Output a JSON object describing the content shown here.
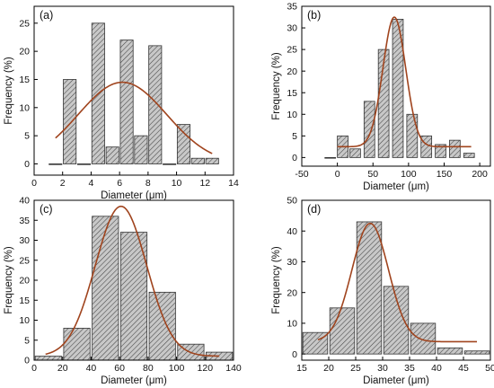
{
  "chart_data": [
    {
      "type": "bar",
      "panel_label": "(a)",
      "xlabel": "Diameter (μm)",
      "ylabel": "Frequency (%)",
      "xlim": [
        0,
        14
      ],
      "ylim": [
        -2,
        28
      ],
      "xticks": [
        "0",
        "2",
        "4",
        "6",
        "8",
        "10",
        "12",
        "14"
      ],
      "yticks": [
        "0",
        "5",
        "10",
        "15",
        "20",
        "25"
      ],
      "bar_width": 0.9,
      "bars": [
        {
          "x": 1.5,
          "y": 0
        },
        {
          "x": 2.5,
          "y": 15
        },
        {
          "x": 3.5,
          "y": 0
        },
        {
          "x": 4.5,
          "y": 25
        },
        {
          "x": 5.5,
          "y": 3
        },
        {
          "x": 6.5,
          "y": 22
        },
        {
          "x": 7.5,
          "y": 5
        },
        {
          "x": 8.5,
          "y": 21
        },
        {
          "x": 9.5,
          "y": 0
        },
        {
          "x": 10.5,
          "y": 7
        },
        {
          "x": 11.5,
          "y": 1
        },
        {
          "x": 12.5,
          "y": 1
        }
      ],
      "fit": {
        "type": "gaussian",
        "baseline": 0,
        "amplitude": 14.5,
        "center": 6.2,
        "sigma": 3.1,
        "x_range": [
          1.5,
          12.5
        ]
      }
    },
    {
      "type": "bar",
      "panel_label": "(b)",
      "xlabel": "Diameter (μm)",
      "ylabel": "Frequency (%)",
      "xlim": [
        -50,
        215
      ],
      "ylim": [
        -2,
        35
      ],
      "xticks": [
        "-50",
        "0",
        "50",
        "100",
        "150",
        "200"
      ],
      "yticks": [
        "0",
        "5",
        "10",
        "15",
        "20",
        "25",
        "30",
        "35"
      ],
      "bar_width": 15,
      "bars": [
        {
          "x": -10,
          "y": 0
        },
        {
          "x": 7.5,
          "y": 5
        },
        {
          "x": 25,
          "y": 2
        },
        {
          "x": 45,
          "y": 13
        },
        {
          "x": 65,
          "y": 25
        },
        {
          "x": 85,
          "y": 32
        },
        {
          "x": 105,
          "y": 10
        },
        {
          "x": 125,
          "y": 5
        },
        {
          "x": 145,
          "y": 3
        },
        {
          "x": 165,
          "y": 4
        },
        {
          "x": 185,
          "y": 1
        }
      ],
      "fit": {
        "type": "gaussian",
        "baseline": 2.5,
        "amplitude": 30,
        "center": 80,
        "sigma": 16,
        "x_range": [
          0,
          188
        ]
      }
    },
    {
      "type": "bar",
      "panel_label": "(c)",
      "xlabel": "Diameter (μm)",
      "ylabel": "Frequency (%)",
      "xlim": [
        0,
        140
      ],
      "ylim": [
        0,
        40
      ],
      "xticks": [
        "0",
        "20",
        "40",
        "60",
        "80",
        "100",
        "120",
        "140"
      ],
      "yticks": [
        "0",
        "5",
        "10",
        "15",
        "20",
        "25",
        "30",
        "35",
        "40"
      ],
      "bar_width": 18.5,
      "bars": [
        {
          "x": 10,
          "y": 1
        },
        {
          "x": 30,
          "y": 8
        },
        {
          "x": 50,
          "y": 36
        },
        {
          "x": 70,
          "y": 32
        },
        {
          "x": 90,
          "y": 17
        },
        {
          "x": 110,
          "y": 4
        },
        {
          "x": 130,
          "y": 2
        }
      ],
      "fit": {
        "type": "gaussian",
        "baseline": 1,
        "amplitude": 37.5,
        "center": 61,
        "sigma": 18,
        "x_range": [
          8,
          130
        ]
      }
    },
    {
      "type": "bar",
      "panel_label": "(d)",
      "xlabel": "Diameter (μm)",
      "ylabel": "Frequency (%)",
      "xlim": [
        15,
        50
      ],
      "ylim": [
        -2,
        50
      ],
      "xticks": [
        "15",
        "20",
        "25",
        "30",
        "35",
        "40",
        "45",
        "50"
      ],
      "yticks": [
        "0",
        "10",
        "20",
        "30",
        "40",
        "50"
      ],
      "bar_width": 4.6,
      "bars": [
        {
          "x": 17.5,
          "y": 7
        },
        {
          "x": 22.5,
          "y": 15
        },
        {
          "x": 27.5,
          "y": 43
        },
        {
          "x": 32.5,
          "y": 22
        },
        {
          "x": 37.5,
          "y": 10
        },
        {
          "x": 42.5,
          "y": 2
        },
        {
          "x": 47.5,
          "y": 1
        }
      ],
      "fit": {
        "type": "gaussian",
        "baseline": 4,
        "amplitude": 38.5,
        "center": 27.7,
        "sigma": 3.4,
        "x_range": [
          18,
          47.5
        ]
      }
    }
  ],
  "colors": {
    "bar_fill": "#c8c8c8",
    "bar_hatch": "#444444",
    "bar_edge": "#333333",
    "fit_curve": "#a0441e",
    "axis": "#000000"
  }
}
